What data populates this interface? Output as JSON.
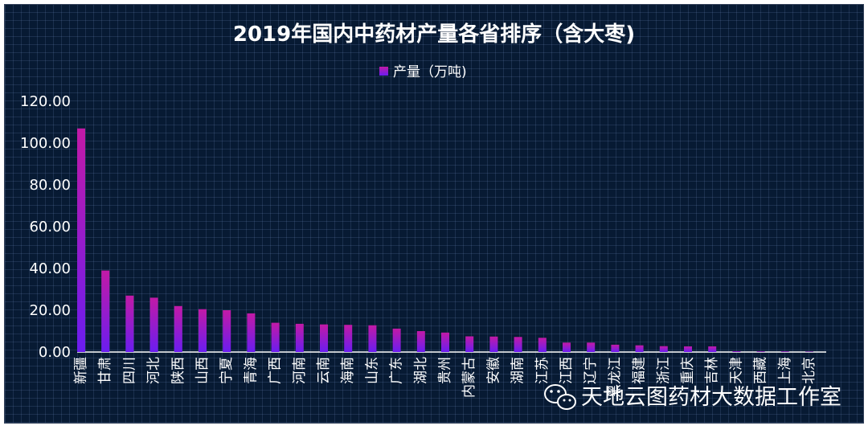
{
  "chart_data": {
    "type": "bar",
    "title": "2019年国内中药材产量各省排序（含大枣)",
    "legend": "产量（万吨)",
    "legend_position": "top",
    "ylim": [
      0,
      120
    ],
    "y_ticks": [
      "0.00",
      "20.00",
      "40.00",
      "60.00",
      "80.00",
      "100.00",
      "120.00"
    ],
    "grid": true,
    "colors": {
      "bar_top": "#c21aa6",
      "bar_bottom": "#6a1df0",
      "background": "#071a33"
    },
    "categories": [
      "新疆",
      "甘肃",
      "四川",
      "河北",
      "陕西",
      "山西",
      "宁夏",
      "青海",
      "广西",
      "河南",
      "云南",
      "海南",
      "山东",
      "广东",
      "湖北",
      "贵州",
      "内蒙古",
      "安徽",
      "湖南",
      "江苏",
      "江西",
      "辽宁",
      "黑龙江",
      "福建",
      "浙江",
      "重庆",
      "吉林",
      "天津",
      "西藏",
      "上海",
      "北京"
    ],
    "series": [
      {
        "name": "产量（万吨)",
        "values": [
          107,
          39,
          27,
          26,
          22,
          20.5,
          20,
          18.5,
          14,
          13.5,
          13.2,
          13,
          12.8,
          11.2,
          10,
          9.3,
          7.5,
          7.4,
          7.2,
          6.8,
          4.5,
          4.5,
          3.5,
          3.2,
          2.8,
          2.7,
          2.7,
          0.4,
          0.3,
          0.3,
          0.2
        ]
      }
    ]
  },
  "watermark": {
    "text": "天地云图药材大数据工作室",
    "icon": "wechat-icon"
  }
}
